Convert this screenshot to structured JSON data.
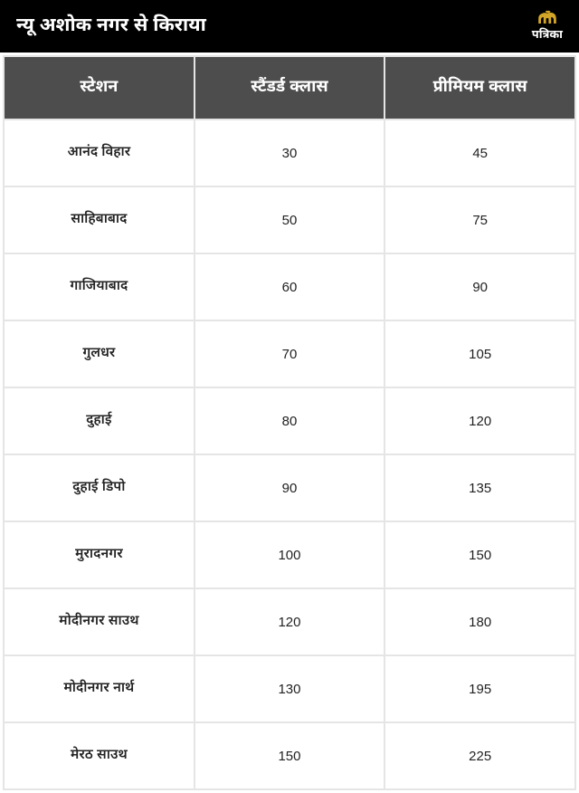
{
  "header": {
    "title": "न्यू अशोक नगर से किराया",
    "logo_text": "पत्रिका"
  },
  "table": {
    "columns": [
      "स्टेशन",
      "स्टैंडर्ड क्लास",
      "प्रीमियम क्लास"
    ],
    "rows": [
      {
        "station": "आनंद विहार",
        "standard": "30",
        "premium": "45"
      },
      {
        "station": "साहिबाबाद",
        "standard": "50",
        "premium": "75"
      },
      {
        "station": "गाजियाबाद",
        "standard": "60",
        "premium": "90"
      },
      {
        "station": "गुलधर",
        "standard": "70",
        "premium": "105"
      },
      {
        "station": "दुहाई",
        "standard": "80",
        "premium": "120"
      },
      {
        "station": "दुहाई डिपो",
        "standard": "90",
        "premium": "135"
      },
      {
        "station": "मुरादनगर",
        "standard": "100",
        "premium": "150"
      },
      {
        "station": "मोदीनगर साउथ",
        "standard": "120",
        "premium": "180"
      },
      {
        "station": "मोदीनगर नार्थ",
        "standard": "130",
        "premium": "195"
      },
      {
        "station": "मेरठ साउथ",
        "standard": "150",
        "premium": "225"
      }
    ],
    "colors": {
      "header_bg": "#000000",
      "th_bg": "#4d4d4d",
      "cell_bg": "#ffffff",
      "border": "#e5e5e5",
      "text": "#222222",
      "header_text": "#ffffff",
      "logo_icon": "#d4a628"
    }
  }
}
